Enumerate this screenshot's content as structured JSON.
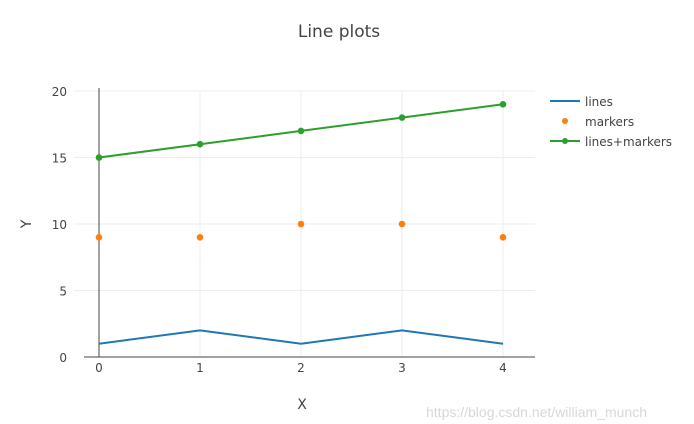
{
  "chart_data": {
    "type": "line",
    "title": "Line plots",
    "xlabel": "X",
    "ylabel": "Y",
    "x": [
      0,
      1,
      2,
      3,
      4
    ],
    "xlim": [
      -0.25,
      4.3
    ],
    "ylim": [
      0,
      20
    ],
    "xticks": [
      "0",
      "1",
      "2",
      "3",
      "4"
    ],
    "yticks": [
      "0",
      "5",
      "10",
      "15",
      "20"
    ],
    "grid": true,
    "legend_position": "top-right outside",
    "series": [
      {
        "name": "lines",
        "mode": "lines",
        "color": "#1f77b4",
        "values": [
          1,
          2,
          1,
          2,
          1
        ]
      },
      {
        "name": "markers",
        "mode": "markers",
        "color": "#ff7f0e",
        "values": [
          9,
          9,
          10,
          10,
          9
        ]
      },
      {
        "name": "lines+markers",
        "mode": "lines+markers",
        "color": "#2ca02c",
        "values": [
          15,
          16,
          17,
          18,
          19
        ]
      }
    ]
  },
  "watermark": "https://blog.csdn.net/william_munch"
}
